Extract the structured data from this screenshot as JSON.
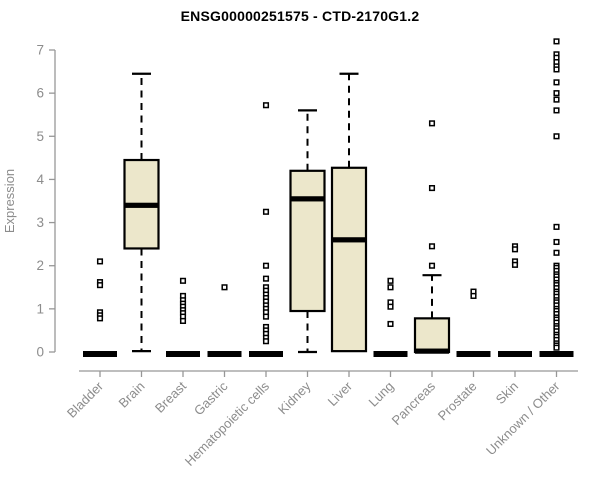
{
  "chart_data": {
    "type": "boxplot",
    "title": "ENSG00000251575 - CTD-2170G1.2",
    "ylabel": "Expression",
    "ylim": [
      0,
      7
    ],
    "yticks": [
      0,
      1,
      2,
      3,
      4,
      5,
      6,
      7
    ],
    "legend": "none",
    "grid": false,
    "colors": {
      "box_fill": "#ece7cb",
      "box_stroke": "#000000",
      "median": "#000000",
      "whisker": "#000000",
      "outlier": "#000000",
      "axis": "#979797",
      "tick_label": "#8c8c8c",
      "title": "#000000",
      "background": "#ffffff"
    },
    "categories": [
      "Bladder",
      "Brain",
      "Breast",
      "Gastric",
      "Hematopoietic cells",
      "Kidney",
      "Liver",
      "Lung",
      "Pancreas",
      "Prostate",
      "Skin",
      "Unknown / Other"
    ],
    "groups": [
      {
        "label": "Bladder",
        "whisker_low": 0,
        "q1": 0,
        "median": 0,
        "q3": 0,
        "whisker_high": 0,
        "outliers": [
          2.1,
          1.62,
          1.55,
          0.92,
          0.85,
          0.78
        ]
      },
      {
        "label": "Brain",
        "whisker_low": 0.02,
        "q1": 2.4,
        "median": 3.4,
        "q3": 4.45,
        "whisker_high": 6.45,
        "outliers": []
      },
      {
        "label": "Breast",
        "whisker_low": 0,
        "q1": 0,
        "median": 0,
        "q3": 0,
        "whisker_high": 0,
        "outliers": [
          1.65,
          1.3,
          1.2,
          1.12,
          1.05,
          0.97,
          0.9,
          0.82,
          0.72
        ]
      },
      {
        "label": "Gastric",
        "whisker_low": 0,
        "q1": 0,
        "median": 0,
        "q3": 0,
        "whisker_high": 0,
        "outliers": [
          1.5
        ]
      },
      {
        "label": "Hematopoietic cells",
        "whisker_low": 0,
        "q1": 0,
        "median": 0,
        "q3": 0,
        "whisker_high": 0,
        "outliers": [
          5.72,
          3.25,
          2.0,
          1.7,
          1.5,
          1.42,
          1.33,
          1.25,
          1.17,
          1.08,
          1.0,
          0.92,
          0.82,
          0.58,
          0.5,
          0.42,
          0.33,
          0.25
        ]
      },
      {
        "label": "Kidney",
        "whisker_low": 0,
        "q1": 0.95,
        "median": 3.55,
        "q3": 4.2,
        "whisker_high": 5.6,
        "outliers": []
      },
      {
        "label": "Liver",
        "whisker_low": 0.02,
        "q1": 0.02,
        "median": 2.6,
        "q3": 4.27,
        "whisker_high": 6.45,
        "outliers": []
      },
      {
        "label": "Lung",
        "whisker_low": 0,
        "q1": 0,
        "median": 0,
        "q3": 0,
        "whisker_high": 0,
        "outliers": [
          1.65,
          1.5,
          1.15,
          1.05,
          0.65
        ]
      },
      {
        "label": "Pancreas",
        "whisker_low": 0,
        "q1": 0,
        "median": 0.02,
        "q3": 0.78,
        "whisker_high": 1.78,
        "outliers": [
          5.3,
          3.8,
          2.45,
          2.0
        ]
      },
      {
        "label": "Prostate",
        "whisker_low": 0,
        "q1": 0,
        "median": 0,
        "q3": 0,
        "whisker_high": 0,
        "outliers": [
          1.4,
          1.3
        ]
      },
      {
        "label": "Skin",
        "whisker_low": 0,
        "q1": 0,
        "median": 0,
        "q3": 0,
        "whisker_high": 0,
        "outliers": [
          2.45,
          2.38,
          2.1,
          2.02
        ]
      },
      {
        "label": "Unknown / Other",
        "whisker_low": 0,
        "q1": 0,
        "median": 0,
        "q3": 0,
        "whisker_high": 0,
        "outliers": [
          7.2,
          6.9,
          6.82,
          6.72,
          6.62,
          6.55,
          6.25,
          6.0,
          5.85,
          5.6,
          5.0,
          2.9,
          2.55,
          2.3,
          2.0,
          1.95,
          1.88,
          1.8,
          1.75,
          1.68,
          1.6,
          1.55,
          1.48,
          1.4,
          1.35,
          1.28,
          1.2,
          1.15,
          1.08,
          1.0,
          0.95,
          0.88,
          0.8,
          0.75,
          0.68,
          0.6,
          0.55,
          0.48,
          0.4,
          0.35,
          0.28,
          0.2,
          0.15,
          0.1
        ]
      }
    ]
  }
}
